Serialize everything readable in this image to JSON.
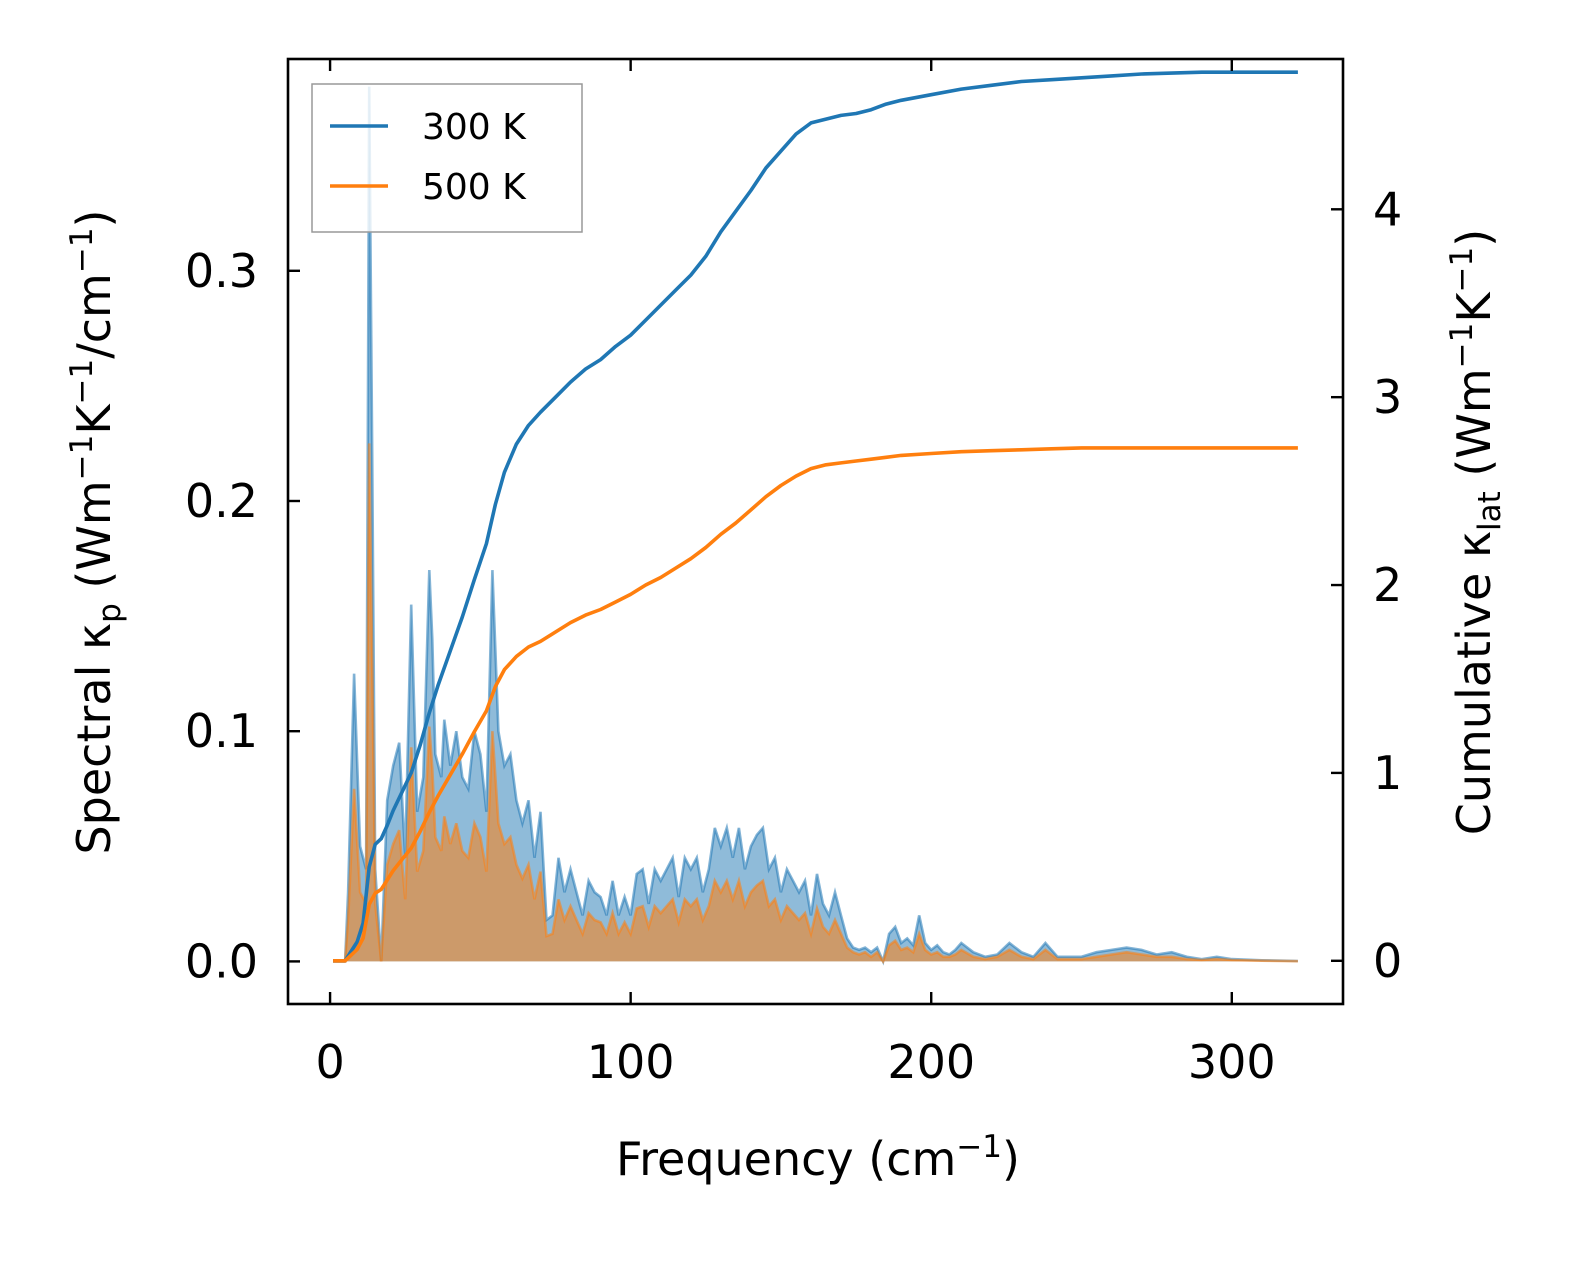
{
  "chart_data": {
    "type": "line",
    "xlabel_main": "Frequency (cm",
    "xlabel_sup": "−1",
    "xlabel_tail": ")",
    "ylabel_left": {
      "t1": "Spectral κ",
      "sub": "p",
      "t2": " (Wm",
      "sup1": "−1",
      "t3": "K",
      "sup2": "−1",
      "t4": "/cm",
      "sup3": "−1",
      "t5": ")"
    },
    "ylabel_right": {
      "t1": "Cumulative κ",
      "sub": "lat",
      "t2": " (Wm",
      "sup1": "−1",
      "t3": "K",
      "sup2": "−1",
      "t4": ")"
    },
    "xlim": [
      -14,
      337
    ],
    "ylim_left": [
      -0.0185,
      0.392
    ],
    "ylim_right": [
      -0.23,
      4.8
    ],
    "x_ticks": [
      0,
      100,
      200,
      300
    ],
    "x_tick_labels": [
      "0",
      "100",
      "200",
      "300"
    ],
    "y_left_ticks": [
      0.0,
      0.1,
      0.2,
      0.3
    ],
    "y_left_tick_labels": [
      "0.0",
      "0.1",
      "0.2",
      "0.3"
    ],
    "y_right_ticks": [
      0,
      1,
      2,
      3,
      4
    ],
    "y_right_tick_labels": [
      "0",
      "1",
      "2",
      "3",
      "4"
    ],
    "legend": {
      "position": "top-left",
      "entries": [
        {
          "label": "300 K",
          "color": "#1f77b4"
        },
        {
          "label": "500 K",
          "color": "#ff7f0e"
        }
      ]
    },
    "series_spectral": [
      {
        "name": "300 K",
        "color": "#1f77b4",
        "x": [
          1,
          5,
          6,
          8,
          10,
          12,
          13,
          14,
          15,
          17,
          19,
          21,
          23,
          25,
          27,
          29,
          31,
          33,
          34,
          35,
          37,
          38,
          40,
          42,
          44,
          46,
          48,
          50,
          52,
          54,
          56,
          58,
          60,
          62,
          64,
          66,
          68,
          70,
          72,
          74,
          76,
          78,
          80,
          82,
          84,
          86,
          88,
          90,
          92,
          94,
          96,
          98,
          100,
          102,
          104,
          106,
          108,
          110,
          112,
          114,
          116,
          118,
          120,
          122,
          124,
          126,
          128,
          130,
          132,
          134,
          136,
          138,
          140,
          142,
          144,
          146,
          148,
          150,
          152,
          154,
          156,
          158,
          160,
          162,
          164,
          166,
          168,
          170,
          172,
          174,
          176,
          178,
          180,
          182,
          184,
          186,
          188,
          190,
          192,
          194,
          196,
          198,
          200,
          202,
          204,
          206,
          208,
          210,
          214,
          218,
          222,
          226,
          230,
          234,
          238,
          242,
          246,
          250,
          255,
          260,
          265,
          270,
          275,
          280,
          285,
          290,
          295,
          300,
          310,
          322
        ],
        "y": [
          0,
          0,
          0.03,
          0.125,
          0.05,
          0.04,
          0.38,
          0.22,
          0.04,
          0,
          0.07,
          0.085,
          0.095,
          0.045,
          0.155,
          0.065,
          0.08,
          0.17,
          0.14,
          0.09,
          0.08,
          0.105,
          0.085,
          0.1,
          0.08,
          0.075,
          0.1,
          0.09,
          0.065,
          0.17,
          0.1,
          0.085,
          0.09,
          0.07,
          0.06,
          0.07,
          0.045,
          0.065,
          0.018,
          0.02,
          0.045,
          0.03,
          0.04,
          0.03,
          0.02,
          0.035,
          0.03,
          0.028,
          0.02,
          0.035,
          0.02,
          0.028,
          0.02,
          0.038,
          0.04,
          0.025,
          0.04,
          0.035,
          0.04,
          0.045,
          0.028,
          0.045,
          0.04,
          0.045,
          0.03,
          0.04,
          0.058,
          0.05,
          0.058,
          0.045,
          0.058,
          0.04,
          0.05,
          0.055,
          0.058,
          0.04,
          0.045,
          0.03,
          0.04,
          0.035,
          0.03,
          0.035,
          0.02,
          0.038,
          0.025,
          0.02,
          0.03,
          0.02,
          0.01,
          0.006,
          0.005,
          0.006,
          0.004,
          0.006,
          0.0,
          0.012,
          0.015,
          0.008,
          0.01,
          0.007,
          0.02,
          0.008,
          0.005,
          0.007,
          0.004,
          0.003,
          0.005,
          0.008,
          0.004,
          0.002,
          0.003,
          0.008,
          0.004,
          0.002,
          0.008,
          0.002,
          0.002,
          0.002,
          0.004,
          0.005,
          0.006,
          0.005,
          0.003,
          0.004,
          0.002,
          0.001,
          0.002,
          0.001,
          0.0005,
          0.0002
        ]
      },
      {
        "name": "500 K",
        "color": "#ff7f0e",
        "x": [
          1,
          5,
          6,
          8,
          10,
          12,
          13,
          14,
          15,
          17,
          19,
          21,
          23,
          25,
          27,
          29,
          31,
          33,
          34,
          35,
          37,
          38,
          40,
          42,
          44,
          46,
          48,
          50,
          52,
          54,
          56,
          58,
          60,
          62,
          64,
          66,
          68,
          70,
          72,
          74,
          76,
          78,
          80,
          82,
          84,
          86,
          88,
          90,
          92,
          94,
          96,
          98,
          100,
          102,
          104,
          106,
          108,
          110,
          112,
          114,
          116,
          118,
          120,
          122,
          124,
          126,
          128,
          130,
          132,
          134,
          136,
          138,
          140,
          142,
          144,
          146,
          148,
          150,
          152,
          154,
          156,
          158,
          160,
          162,
          164,
          166,
          168,
          170,
          172,
          174,
          176,
          178,
          180,
          182,
          184,
          186,
          188,
          190,
          192,
          194,
          196,
          198,
          200,
          202,
          204,
          206,
          208,
          210,
          214,
          218,
          222,
          226,
          230,
          234,
          238,
          242,
          246,
          250,
          255,
          260,
          265,
          270,
          275,
          280,
          285,
          290,
          295,
          300,
          310,
          322
        ],
        "y": [
          0,
          0,
          0.018,
          0.075,
          0.03,
          0.025,
          0.225,
          0.13,
          0.025,
          0,
          0.042,
          0.051,
          0.057,
          0.027,
          0.093,
          0.039,
          0.048,
          0.102,
          0.084,
          0.054,
          0.048,
          0.063,
          0.051,
          0.06,
          0.048,
          0.045,
          0.06,
          0.054,
          0.039,
          0.1,
          0.06,
          0.051,
          0.054,
          0.042,
          0.036,
          0.042,
          0.027,
          0.039,
          0.011,
          0.012,
          0.027,
          0.018,
          0.024,
          0.018,
          0.012,
          0.021,
          0.018,
          0.017,
          0.012,
          0.021,
          0.012,
          0.017,
          0.012,
          0.023,
          0.024,
          0.015,
          0.024,
          0.021,
          0.024,
          0.027,
          0.017,
          0.027,
          0.024,
          0.027,
          0.018,
          0.024,
          0.035,
          0.03,
          0.035,
          0.027,
          0.035,
          0.024,
          0.03,
          0.033,
          0.035,
          0.024,
          0.027,
          0.018,
          0.024,
          0.021,
          0.018,
          0.021,
          0.012,
          0.023,
          0.015,
          0.012,
          0.018,
          0.012,
          0.006,
          0.004,
          0.003,
          0.004,
          0.002,
          0.004,
          0.0,
          0.007,
          0.009,
          0.005,
          0.006,
          0.004,
          0.012,
          0.005,
          0.003,
          0.004,
          0.002,
          0.002,
          0.003,
          0.005,
          0.002,
          0.001,
          0.002,
          0.005,
          0.002,
          0.001,
          0.005,
          0.001,
          0.001,
          0.001,
          0.002,
          0.003,
          0.004,
          0.003,
          0.002,
          0.002,
          0.001,
          0.0006,
          0.001,
          0.0006,
          0.0003,
          0.0001
        ]
      }
    ],
    "series_cumulative": [
      {
        "name": "300 K",
        "color": "#1f77b4",
        "x": [
          1,
          5,
          7,
          9,
          11,
          13,
          15,
          17,
          19,
          21,
          24,
          27,
          30,
          33,
          36,
          40,
          44,
          48,
          52,
          55,
          58,
          62,
          66,
          70,
          75,
          80,
          85,
          90,
          95,
          100,
          105,
          110,
          115,
          120,
          125,
          130,
          135,
          140,
          145,
          150,
          155,
          160,
          165,
          170,
          175,
          180,
          185,
          190,
          200,
          210,
          220,
          230,
          240,
          250,
          260,
          270,
          280,
          290,
          300,
          310,
          322
        ],
        "y": [
          0,
          0,
          0.05,
          0.1,
          0.2,
          0.5,
          0.62,
          0.65,
          0.72,
          0.8,
          0.9,
          1.0,
          1.15,
          1.32,
          1.47,
          1.65,
          1.83,
          2.03,
          2.22,
          2.43,
          2.6,
          2.75,
          2.85,
          2.92,
          3.0,
          3.08,
          3.15,
          3.2,
          3.27,
          3.33,
          3.41,
          3.49,
          3.57,
          3.65,
          3.75,
          3.88,
          3.99,
          4.1,
          4.22,
          4.31,
          4.4,
          4.46,
          4.48,
          4.5,
          4.51,
          4.53,
          4.56,
          4.58,
          4.61,
          4.64,
          4.66,
          4.68,
          4.69,
          4.7,
          4.71,
          4.72,
          4.725,
          4.73,
          4.73,
          4.73,
          4.73
        ]
      },
      {
        "name": "500 K",
        "color": "#ff7f0e",
        "x": [
          1,
          5,
          7,
          9,
          11,
          13,
          15,
          17,
          19,
          21,
          24,
          27,
          30,
          33,
          36,
          40,
          44,
          48,
          52,
          55,
          58,
          62,
          66,
          70,
          75,
          80,
          85,
          90,
          95,
          100,
          105,
          110,
          115,
          120,
          125,
          130,
          135,
          140,
          145,
          150,
          155,
          160,
          165,
          170,
          175,
          180,
          185,
          190,
          200,
          210,
          220,
          230,
          240,
          250,
          260,
          270,
          280,
          290,
          300,
          310,
          322
        ],
        "y": [
          0,
          0,
          0.03,
          0.06,
          0.12,
          0.3,
          0.36,
          0.38,
          0.43,
          0.48,
          0.54,
          0.6,
          0.69,
          0.79,
          0.88,
          0.99,
          1.1,
          1.22,
          1.33,
          1.46,
          1.55,
          1.62,
          1.67,
          1.7,
          1.75,
          1.8,
          1.84,
          1.87,
          1.91,
          1.95,
          2.0,
          2.04,
          2.09,
          2.14,
          2.2,
          2.27,
          2.33,
          2.4,
          2.47,
          2.53,
          2.58,
          2.62,
          2.64,
          2.65,
          2.66,
          2.67,
          2.68,
          2.69,
          2.7,
          2.71,
          2.715,
          2.72,
          2.725,
          2.73,
          2.73,
          2.73,
          2.73,
          2.73,
          2.73,
          2.73,
          2.73
        ]
      }
    ]
  }
}
